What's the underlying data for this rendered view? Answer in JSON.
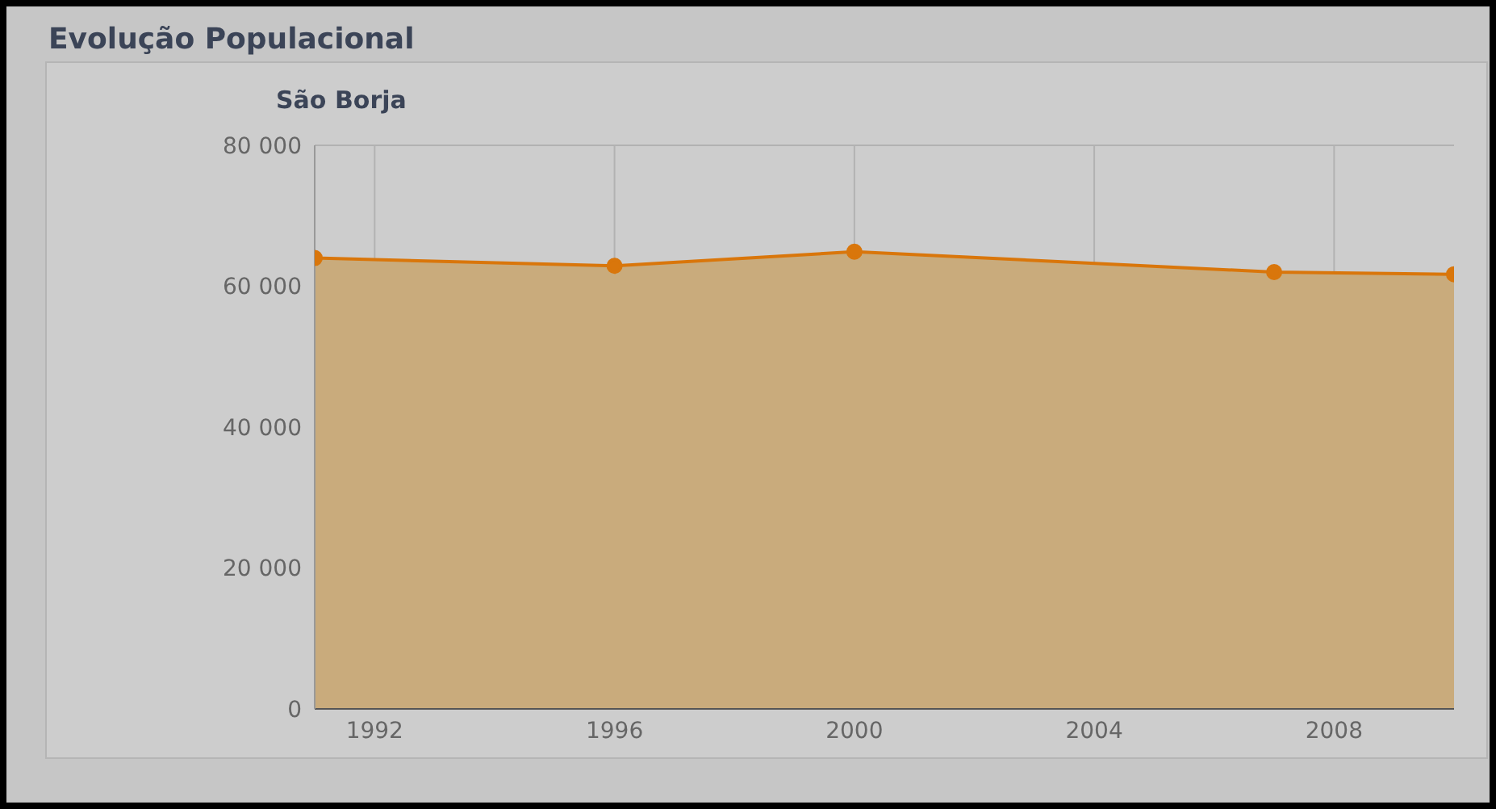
{
  "chart_data": {
    "type": "area",
    "title": "Evolução Populacional",
    "subtitle": "São Borja",
    "x": [
      1991,
      1996,
      2000,
      2007,
      2010
    ],
    "series": [
      {
        "color": "#d9760b",
        "values": [
          64000,
          62900,
          64900,
          62000,
          61700
        ]
      }
    ],
    "xlim": [
      1991,
      2010
    ],
    "xticks": [
      1992,
      1996,
      2000,
      2004,
      2008
    ],
    "ylim": [
      0,
      80000
    ],
    "yticks": [
      {
        "value": 0,
        "label": "0"
      },
      {
        "value": 20000,
        "label": "20 000"
      },
      {
        "value": 40000,
        "label": "40 000"
      },
      {
        "value": 60000,
        "label": "60 000"
      },
      {
        "value": 80000,
        "label": "80 000"
      }
    ],
    "grid": true,
    "marker": "circle"
  }
}
